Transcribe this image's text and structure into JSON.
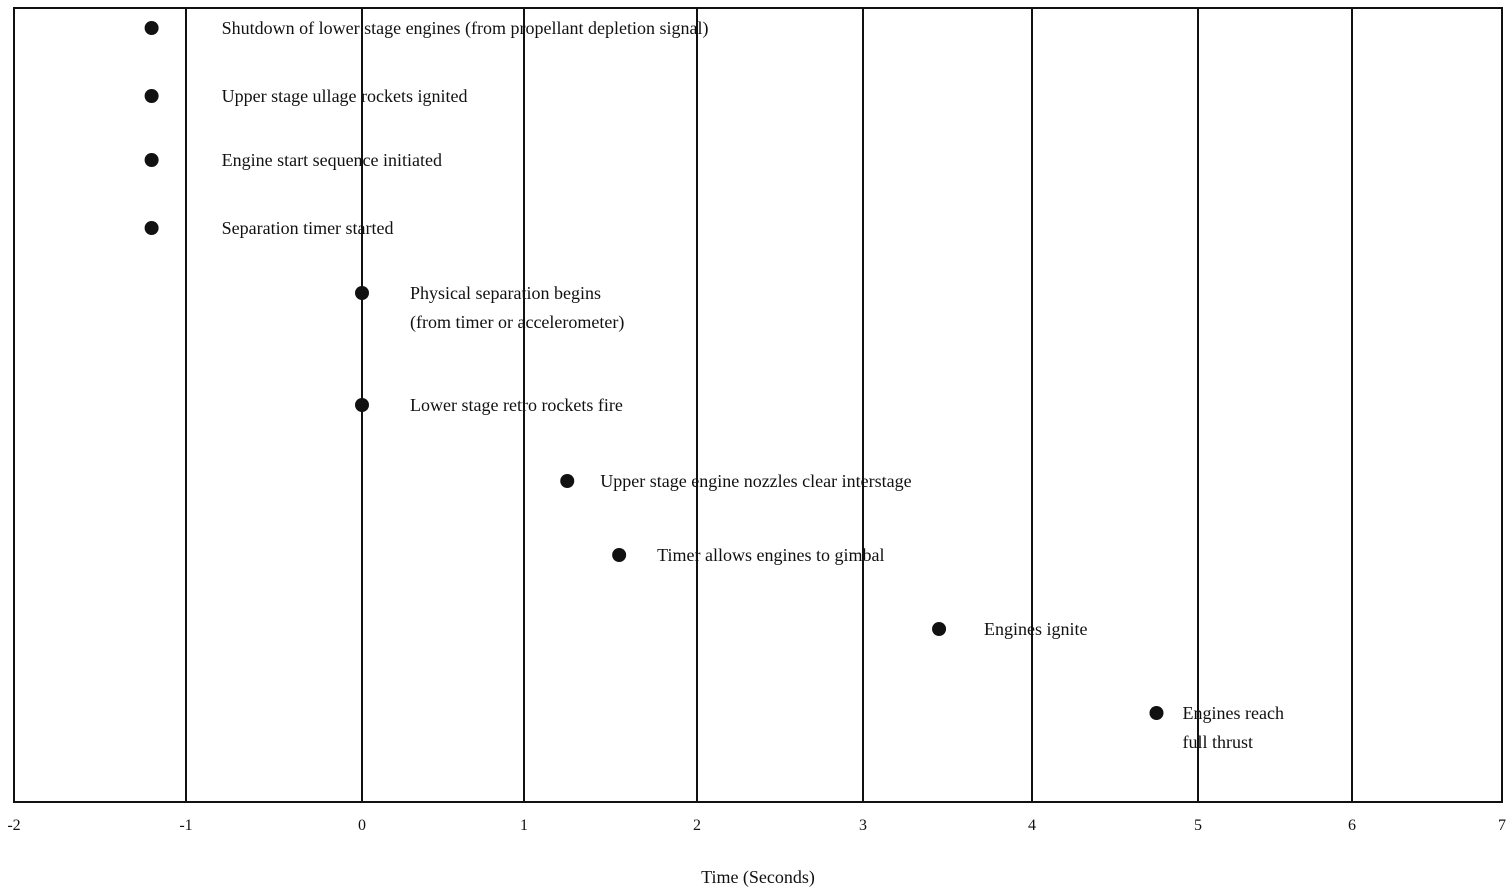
{
  "chart_data": {
    "type": "scatter",
    "title": "",
    "xlabel": "Time (Seconds)",
    "ylabel": "",
    "xlim": [
      -2,
      7
    ],
    "x_ticks": [
      "-2",
      "-1",
      "0",
      "1",
      "2",
      "3",
      "4",
      "5",
      "6",
      "7"
    ],
    "grid": "vertical lines at each second",
    "events": [
      {
        "x": -1.2,
        "label": [
          "Shutdown of lower stage engines (from propellant depletion signal)"
        ]
      },
      {
        "x": -1.2,
        "label": [
          "Upper stage ullage rockets ignited"
        ]
      },
      {
        "x": -1.2,
        "label": [
          "Engine start sequence initiated"
        ]
      },
      {
        "x": -1.2,
        "label": [
          "Separation timer started"
        ]
      },
      {
        "x": 0.0,
        "label": [
          "Physical separation begins",
          "(from timer or accelerometer)"
        ]
      },
      {
        "x": 0.0,
        "label": [
          "Lower stage retro rockets fire"
        ]
      },
      {
        "x": 1.25,
        "label": [
          "Upper stage engine nozzles clear interstage"
        ]
      },
      {
        "x": 1.55,
        "label": [
          "Timer allows engines to gimbal"
        ]
      },
      {
        "x": 3.45,
        "label": [
          "Engines ignite"
        ]
      },
      {
        "x": 4.75,
        "label": [
          "Engines reach",
          "full thrust"
        ]
      }
    ]
  }
}
